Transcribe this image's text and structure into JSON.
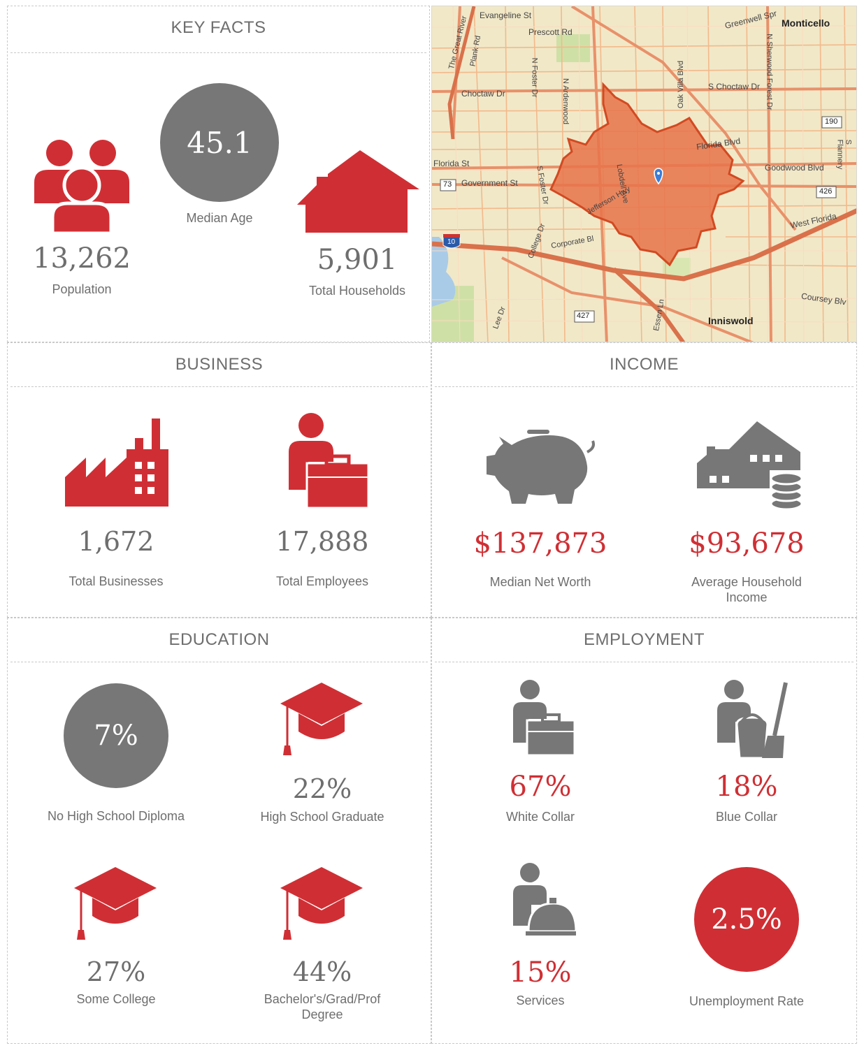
{
  "colors": {
    "red": "#cf2f34",
    "gray": "#777777",
    "map_bg": "#f1e8c8",
    "map_poly": "#e8734a"
  },
  "key_facts": {
    "title": "KEY FACTS",
    "population": {
      "value": "13,262",
      "label": "Population",
      "icon": "people-group-icon"
    },
    "median_age": {
      "value": "45.1",
      "label": "Median Age"
    },
    "households": {
      "value": "5,901",
      "label": "Total Households",
      "icon": "house-icon"
    }
  },
  "map": {
    "labels": {
      "monticello": "Monticello",
      "inniswold": "Inniswold",
      "evangeline": "Evangeline St",
      "prescott": "Prescott Rd",
      "greenwell": "Greenwell Spr",
      "choctaw": "Choctaw Dr",
      "s_choctaw": "S Choctaw Dr",
      "florida_st": "Florida St",
      "florida_blvd": "Florida Blvd",
      "government": "Government St",
      "goodwood": "Goodwood Blvd",
      "west_florida": "West Florida",
      "coursey": "Coursey Blv",
      "corporate": "Corporate Bl",
      "jefferson": "Jefferson Hwy",
      "lobdell": "Lobdell Ave",
      "n_foster": "N Foster Dr",
      "s_foster": "S Foster Dr",
      "n_ardenwood": "N Ardenwood",
      "oak_villa": "Oak Villa Blvd",
      "n_sherwood": "N Sherwood Forest Dr",
      "college": "College Dr",
      "lee": "Lee Dr",
      "essen": "Essen Ln",
      "plank": "Plank Rd",
      "great_river": "The Great River",
      "s_flannery": "S Flannery",
      "shield_190": "190",
      "shield_426": "426",
      "shield_73": "73",
      "shield_427": "427",
      "shield_10": "10"
    }
  },
  "business": {
    "title": "BUSINESS",
    "businesses": {
      "value": "1,672",
      "label": "Total Businesses",
      "icon": "factory-icon"
    },
    "employees": {
      "value": "17,888",
      "label": "Total Employees",
      "icon": "worker-briefcase-icon"
    }
  },
  "income": {
    "title": "INCOME",
    "net_worth": {
      "value": "$137,873",
      "label": "Median Net Worth",
      "icon": "piggy-bank-icon"
    },
    "household_income": {
      "value": "$93,678",
      "label": "Average Household Income",
      "icon": "house-coins-icon"
    }
  },
  "education": {
    "title": "EDUCATION",
    "no_diploma": {
      "value": "7%",
      "label": "No High School Diploma"
    },
    "hs_grad": {
      "value": "22%",
      "label": "High School Graduate",
      "icon": "graduation-cap-icon"
    },
    "some_college": {
      "value": "27%",
      "label": "Some College",
      "icon": "graduation-cap-icon"
    },
    "bachelors": {
      "value": "44%",
      "label": "Bachelor's/Grad/Prof Degree",
      "icon": "graduation-cap-icon"
    }
  },
  "employment": {
    "title": "EMPLOYMENT",
    "white_collar": {
      "value": "67%",
      "label": "White Collar",
      "icon": "white-collar-worker-icon"
    },
    "blue_collar": {
      "value": "18%",
      "label": "Blue Collar",
      "icon": "blue-collar-worker-icon"
    },
    "services": {
      "value": "15%",
      "label": "Services",
      "icon": "service-worker-icon"
    },
    "unemployment": {
      "value": "2.5%",
      "label": "Unemployment Rate"
    }
  }
}
